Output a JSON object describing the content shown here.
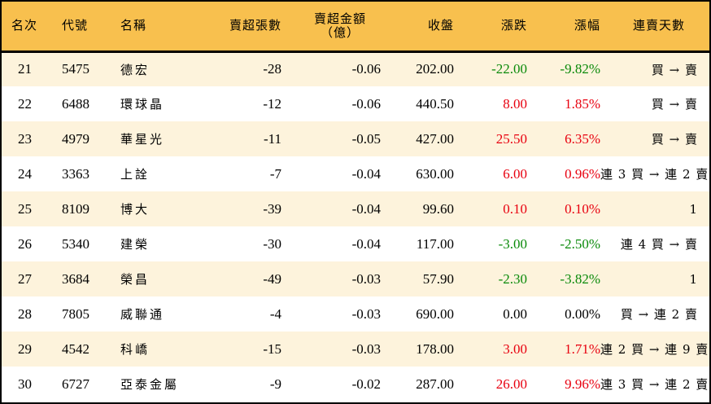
{
  "header": {
    "rank": "名次",
    "code": "代號",
    "name": "名稱",
    "net_sell_lots": "賣超張數",
    "net_sell_amount_line1": "賣超金額",
    "net_sell_amount_line2": "（億）",
    "close": "收盤",
    "change": "漲跌",
    "change_pct": "漲幅",
    "streak": "連賣天數"
  },
  "colors": {
    "header_bg": "#F8C04E",
    "row_odd_bg": "#FDF3DC",
    "row_even_bg": "#FFFFFF",
    "up": "#E8000F",
    "down": "#0A8A0A"
  },
  "rows": [
    {
      "rank": "21",
      "code": "5475",
      "name": "德宏",
      "lots": "-28",
      "amount": "-0.06",
      "close": "202.00",
      "change": "-22.00",
      "pct": "-9.82%",
      "direction": "down",
      "streak": "買 → 賣"
    },
    {
      "rank": "22",
      "code": "6488",
      "name": "環球晶",
      "lots": "-12",
      "amount": "-0.06",
      "close": "440.50",
      "change": "8.00",
      "pct": "1.85%",
      "direction": "up",
      "streak": "買 → 賣"
    },
    {
      "rank": "23",
      "code": "4979",
      "name": "華星光",
      "lots": "-11",
      "amount": "-0.05",
      "close": "427.00",
      "change": "25.50",
      "pct": "6.35%",
      "direction": "up",
      "streak": "買 → 賣"
    },
    {
      "rank": "24",
      "code": "3363",
      "name": "上詮",
      "lots": "-7",
      "amount": "-0.04",
      "close": "630.00",
      "change": "6.00",
      "pct": "0.96%",
      "direction": "up",
      "streak": "連 3 買 → 連 2 賣"
    },
    {
      "rank": "25",
      "code": "8109",
      "name": "博大",
      "lots": "-39",
      "amount": "-0.04",
      "close": "99.60",
      "change": "0.10",
      "pct": "0.10%",
      "direction": "up",
      "streak": "1"
    },
    {
      "rank": "26",
      "code": "5340",
      "name": "建榮",
      "lots": "-30",
      "amount": "-0.04",
      "close": "117.00",
      "change": "-3.00",
      "pct": "-2.50%",
      "direction": "down",
      "streak": "連 4 買 → 賣"
    },
    {
      "rank": "27",
      "code": "3684",
      "name": "榮昌",
      "lots": "-49",
      "amount": "-0.03",
      "close": "57.90",
      "change": "-2.30",
      "pct": "-3.82%",
      "direction": "down",
      "streak": "1"
    },
    {
      "rank": "28",
      "code": "7805",
      "name": "威聯通",
      "lots": "-4",
      "amount": "-0.03",
      "close": "690.00",
      "change": "0.00",
      "pct": "0.00%",
      "direction": "flat",
      "streak": "買 → 連 2 賣"
    },
    {
      "rank": "29",
      "code": "4542",
      "name": "科嶠",
      "lots": "-15",
      "amount": "-0.03",
      "close": "178.00",
      "change": "3.00",
      "pct": "1.71%",
      "direction": "up",
      "streak": "連 2 買 → 連 9 賣"
    },
    {
      "rank": "30",
      "code": "6727",
      "name": "亞泰金屬",
      "lots": "-9",
      "amount": "-0.02",
      "close": "287.00",
      "change": "26.00",
      "pct": "9.96%",
      "direction": "up",
      "streak": "連 3 買 → 連 2 賣"
    }
  ]
}
